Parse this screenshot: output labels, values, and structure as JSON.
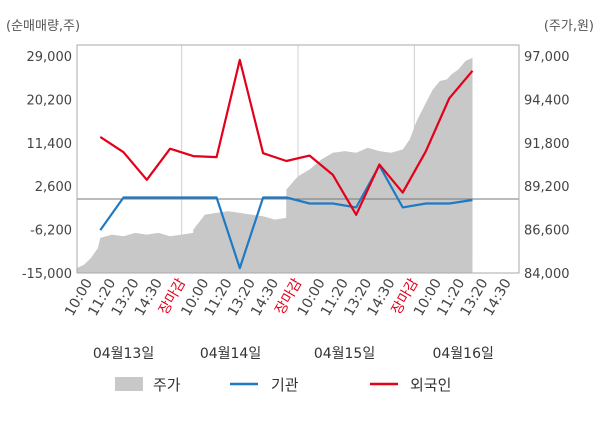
{
  "chart_data": {
    "type": "line",
    "left_unit": "(순매매량,주)",
    "right_unit": "(주가,원)",
    "left_ticks": [
      "29,000",
      "20,200",
      "11,400",
      "2,600",
      "-6,200",
      "-15,000"
    ],
    "left_tick_values": [
      29000,
      20200,
      11400,
      2600,
      -6200,
      -15000
    ],
    "right_ticks": [
      "97,000",
      "94,400",
      "91,800",
      "89,200",
      "86,600",
      "84,000"
    ],
    "right_tick_values": [
      97000,
      94400,
      91800,
      89200,
      86600,
      84000
    ],
    "ylim_left": [
      -15000,
      29000
    ],
    "ylim_right": [
      84000,
      97000
    ],
    "x_tick_labels": [
      {
        "label": "10:00",
        "red": false
      },
      {
        "label": "11:20",
        "red": false
      },
      {
        "label": "13:20",
        "red": false
      },
      {
        "label": "14:30",
        "red": false
      },
      {
        "label": "장마감",
        "red": true
      },
      {
        "label": "10:00",
        "red": false
      },
      {
        "label": "11:20",
        "red": false
      },
      {
        "label": "13:20",
        "red": false
      },
      {
        "label": "14:30",
        "red": false
      },
      {
        "label": "장마감",
        "red": true
      },
      {
        "label": "10:00",
        "red": false
      },
      {
        "label": "11:20",
        "red": false
      },
      {
        "label": "13:20",
        "red": false
      },
      {
        "label": "14:30",
        "red": false
      },
      {
        "label": "장마감",
        "red": true
      },
      {
        "label": "10:00",
        "red": false
      },
      {
        "label": "11:20",
        "red": false
      },
      {
        "label": "13:20",
        "red": false
      },
      {
        "label": "14:30",
        "red": false
      }
    ],
    "dates": [
      "04월13일",
      "04월14일",
      "04월15일",
      "04월16일"
    ],
    "series": [
      {
        "name": "주가",
        "axis": "right",
        "color": "#c8c8c8",
        "type": "area",
        "x": [
          0,
          0.3,
          0.6,
          0.9,
          1.0,
          1.5,
          2.0,
          2.5,
          3.0,
          3.5,
          4.0,
          4.5,
          4.99,
          5.0,
          5.5,
          6.0,
          6.5,
          7.0,
          7.5,
          8.0,
          8.5,
          8.99,
          9.0,
          9.5,
          10.0,
          10.5,
          11.0,
          11.5,
          12.0,
          12.5,
          13.0,
          13.5,
          13.99,
          14.0,
          14.3,
          14.6,
          15.0,
          15.3,
          15.6,
          15.9,
          16.1,
          16.4,
          16.7,
          17.0
        ],
        "values": [
          84300,
          84500,
          84900,
          85500,
          86100,
          86300,
          86200,
          86400,
          86300,
          86400,
          86200,
          86300,
          86400,
          86600,
          87500,
          87600,
          87700,
          87600,
          87500,
          87400,
          87200,
          87300,
          89000,
          89800,
          90200,
          90800,
          91200,
          91300,
          91200,
          91500,
          91300,
          91200,
          91400,
          91400,
          92000,
          93100,
          94200,
          95000,
          95500,
          95600,
          95900,
          96200,
          96700,
          96900
        ]
      },
      {
        "name": "기관",
        "axis": "left",
        "color": "#1f7ac4",
        "type": "line",
        "x": [
          1,
          2,
          3,
          4,
          5,
          6,
          7,
          8,
          9,
          10,
          11,
          12,
          13,
          14,
          15,
          16,
          17
        ],
        "values": [
          -6300,
          300,
          300,
          300,
          300,
          300,
          -14000,
          300,
          300,
          -900,
          -900,
          -1700,
          6800,
          -1700,
          -900,
          -900,
          -200
        ]
      },
      {
        "name": "외국인",
        "axis": "left",
        "color": "#e3001b",
        "type": "line",
        "x": [
          1,
          2,
          3,
          4,
          5,
          6,
          7,
          8,
          9,
          10,
          11,
          12,
          13,
          14,
          15,
          16,
          17
        ],
        "values": [
          12600,
          9500,
          3900,
          10200,
          8700,
          8500,
          28200,
          9300,
          7700,
          8800,
          4900,
          -3200,
          7000,
          1300,
          9700,
          20400,
          26000
        ]
      }
    ]
  }
}
